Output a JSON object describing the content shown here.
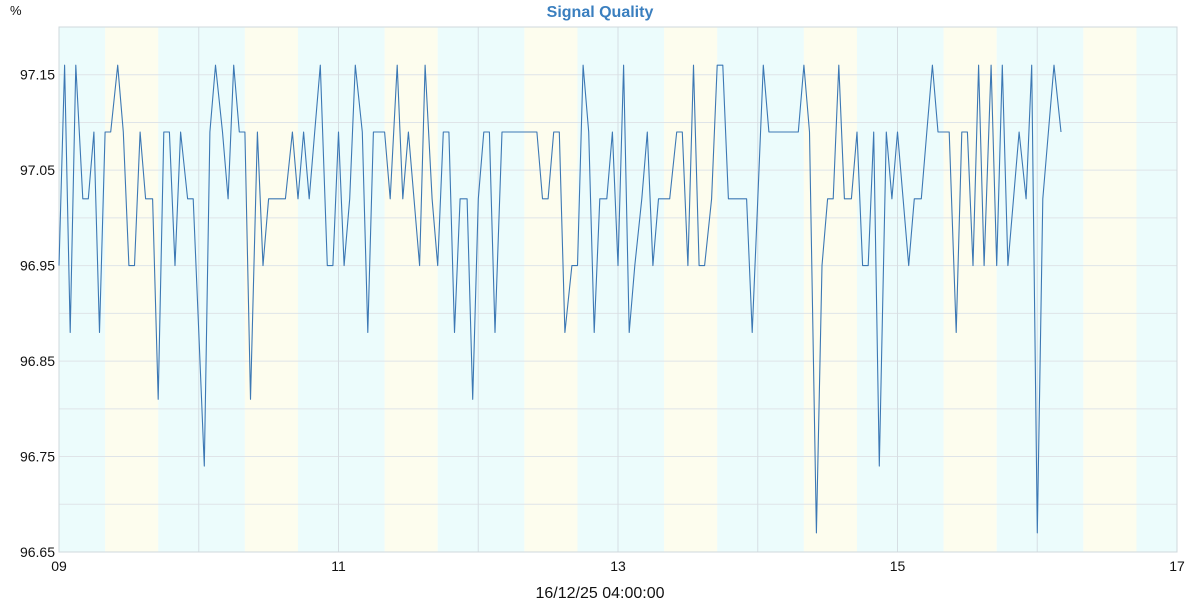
{
  "chart_data": {
    "type": "line",
    "title": "Signal Quality",
    "unit_label": "%",
    "footer_label": "16/12/25 04:00:00",
    "xlim": [
      9,
      17
    ],
    "ylim": [
      96.65,
      97.2
    ],
    "yticks": [
      96.65,
      96.75,
      96.85,
      96.95,
      97.05,
      97.15
    ],
    "ytick_labels": [
      "96.65",
      "96.75",
      "96.85",
      "96.95",
      "97.05",
      "97.15"
    ],
    "xticks": [
      9,
      11,
      13,
      15,
      17
    ],
    "xtick_labels": [
      "09",
      "11",
      "13",
      "15",
      "17"
    ],
    "bands": [
      {
        "start": 9.0,
        "end": 9.33,
        "color": "#ecfcfc"
      },
      {
        "start": 9.33,
        "end": 9.71,
        "color": "#fdfdee"
      },
      {
        "start": 9.71,
        "end": 10.33,
        "color": "#ecfcfc"
      },
      {
        "start": 10.33,
        "end": 10.71,
        "color": "#fdfdee"
      },
      {
        "start": 10.71,
        "end": 11.33,
        "color": "#ecfcfc"
      },
      {
        "start": 11.33,
        "end": 11.71,
        "color": "#fdfdee"
      },
      {
        "start": 11.71,
        "end": 12.33,
        "color": "#ecfcfc"
      },
      {
        "start": 12.33,
        "end": 12.71,
        "color": "#fdfdee"
      },
      {
        "start": 12.71,
        "end": 13.33,
        "color": "#ecfcfc"
      },
      {
        "start": 13.33,
        "end": 13.71,
        "color": "#fdfdee"
      },
      {
        "start": 13.71,
        "end": 14.33,
        "color": "#ecfcfc"
      },
      {
        "start": 14.33,
        "end": 14.71,
        "color": "#fdfdee"
      },
      {
        "start": 14.71,
        "end": 15.33,
        "color": "#ecfcfc"
      },
      {
        "start": 15.33,
        "end": 15.71,
        "color": "#fdfdee"
      },
      {
        "start": 15.71,
        "end": 16.33,
        "color": "#ecfcfc"
      },
      {
        "start": 16.33,
        "end": 16.71,
        "color": "#fdfdee"
      },
      {
        "start": 16.71,
        "end": 17.0,
        "color": "#ecfcfc"
      }
    ],
    "grid": true,
    "legend": "none",
    "series": [
      {
        "color": "#3c78b4",
        "x": [
          9.0,
          9.04,
          9.08,
          9.12,
          9.17,
          9.21,
          9.25,
          9.29,
          9.33,
          9.37,
          9.42,
          9.46,
          9.5,
          9.54,
          9.58,
          9.62,
          9.67,
          9.71,
          9.75,
          9.79,
          9.83,
          9.87,
          9.92,
          9.96,
          10.0,
          10.04,
          10.08,
          10.12,
          10.17,
          10.21,
          10.25,
          10.29,
          10.33,
          10.37,
          10.42,
          10.46,
          10.5,
          10.54,
          10.58,
          10.62,
          10.67,
          10.71,
          10.75,
          10.79,
          10.83,
          10.87,
          10.92,
          10.96,
          11.0,
          11.04,
          11.08,
          11.12,
          11.17,
          11.21,
          11.25,
          11.29,
          11.33,
          11.37,
          11.42,
          11.46,
          11.5,
          11.54,
          11.58,
          11.62,
          11.67,
          11.71,
          11.75,
          11.79,
          11.83,
          11.87,
          11.92,
          11.96,
          12.0,
          12.04,
          12.08,
          12.12,
          12.17,
          12.21,
          12.25,
          12.29,
          12.33,
          12.37,
          12.42,
          12.46,
          12.5,
          12.54,
          12.58,
          12.62,
          12.67,
          12.71,
          12.75,
          12.79,
          12.83,
          12.87,
          12.92,
          12.96,
          13.0,
          13.04,
          13.08,
          13.12,
          13.17,
          13.21,
          13.25,
          13.29,
          13.33,
          13.37,
          13.42,
          13.46,
          13.5,
          13.54,
          13.58,
          13.62,
          13.67,
          13.71,
          13.75,
          13.79,
          13.83,
          13.87,
          13.92,
          13.96,
          14.0,
          14.04,
          14.08,
          14.12,
          14.17,
          14.21,
          14.25,
          14.29,
          14.33,
          14.37,
          14.42,
          14.46,
          14.5,
          14.54,
          14.58,
          14.62,
          14.67,
          14.71,
          14.75,
          14.79,
          14.83,
          14.87,
          14.92,
          14.96,
          15.0,
          15.04,
          15.08,
          15.12,
          15.17,
          15.21,
          15.25,
          15.29,
          15.33,
          15.37,
          15.42,
          15.46,
          15.5,
          15.54,
          15.58,
          15.62,
          15.67,
          15.71,
          15.75,
          15.79,
          15.83,
          15.87,
          15.92,
          15.96,
          16.0,
          16.04,
          16.08,
          16.12,
          16.17
        ],
        "y": [
          96.95,
          97.16,
          96.88,
          97.16,
          97.02,
          97.02,
          97.09,
          96.88,
          97.09,
          97.09,
          97.16,
          97.09,
          96.95,
          96.95,
          97.09,
          97.02,
          97.02,
          96.81,
          97.09,
          97.09,
          96.95,
          97.09,
          97.02,
          97.02,
          96.88,
          96.74,
          97.09,
          97.16,
          97.09,
          97.02,
          97.16,
          97.09,
          97.09,
          96.81,
          97.09,
          96.95,
          97.02,
          97.02,
          97.02,
          97.02,
          97.09,
          97.02,
          97.09,
          97.02,
          97.09,
          97.16,
          96.95,
          96.95,
          97.09,
          96.95,
          97.02,
          97.16,
          97.09,
          96.88,
          97.09,
          97.09,
          97.09,
          97.02,
          97.16,
          97.02,
          97.09,
          97.02,
          96.95,
          97.16,
          97.02,
          96.95,
          97.09,
          97.09,
          96.88,
          97.02,
          97.02,
          96.81,
          97.02,
          97.09,
          97.09,
          96.88,
          97.09,
          97.09,
          97.09,
          97.09,
          97.09,
          97.09,
          97.09,
          97.02,
          97.02,
          97.09,
          97.09,
          96.88,
          96.95,
          96.95,
          97.16,
          97.09,
          96.88,
          97.02,
          97.02,
          97.09,
          96.95,
          97.16,
          96.88,
          96.95,
          97.02,
          97.09,
          96.95,
          97.02,
          97.02,
          97.02,
          97.09,
          97.09,
          96.95,
          97.16,
          96.95,
          96.95,
          97.02,
          97.16,
          97.16,
          97.02,
          97.02,
          97.02,
          97.02,
          96.88,
          97.02,
          97.16,
          97.09,
          97.09,
          97.09,
          97.09,
          97.09,
          97.09,
          97.16,
          97.09,
          96.67,
          96.95,
          97.02,
          97.02,
          97.16,
          97.02,
          97.02,
          97.09,
          96.95,
          96.95,
          97.09,
          96.74,
          97.09,
          97.02,
          97.09,
          97.02,
          96.95,
          97.02,
          97.02,
          97.09,
          97.16,
          97.09,
          97.09,
          97.09,
          96.88,
          97.09,
          97.09,
          96.95,
          97.16,
          96.95,
          97.16,
          96.95,
          97.16,
          96.95,
          97.02,
          97.09,
          97.02,
          97.16,
          96.67,
          97.02,
          97.09,
          97.16,
          97.09
        ]
      }
    ]
  }
}
